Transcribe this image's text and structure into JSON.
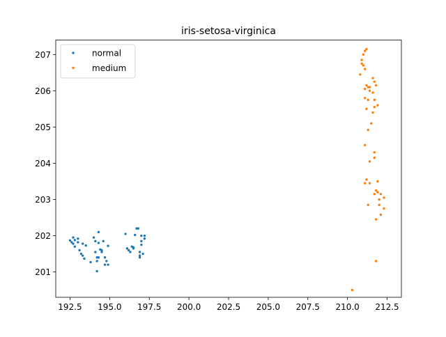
{
  "chart_data": {
    "type": "scatter",
    "title": "iris-setosa-virginica",
    "xlabel": "",
    "ylabel": "",
    "xlim": [
      191.6,
      213.4
    ],
    "ylim": [
      200.3,
      207.4
    ],
    "xticks": [
      192.5,
      195.0,
      197.5,
      200.0,
      202.5,
      205.0,
      207.5,
      210.0,
      212.5
    ],
    "xtick_labels": [
      "192.5",
      "195.0",
      "197.5",
      "200.0",
      "202.5",
      "205.0",
      "207.5",
      "210.0",
      "212.5"
    ],
    "yticks": [
      201,
      202,
      203,
      204,
      205,
      206,
      207
    ],
    "ytick_labels": [
      "201",
      "202",
      "203",
      "204",
      "205",
      "206",
      "207"
    ],
    "grid": false,
    "legend_position": "top-left",
    "series": [
      {
        "name": "normal",
        "color": "#1f77b4",
        "points": [
          [
            192.5,
            201.87
          ],
          [
            192.6,
            201.82
          ],
          [
            192.7,
            201.95
          ],
          [
            192.7,
            201.78
          ],
          [
            192.8,
            201.88
          ],
          [
            192.8,
            201.7
          ],
          [
            193.0,
            201.92
          ],
          [
            193.0,
            201.82
          ],
          [
            193.1,
            201.6
          ],
          [
            193.2,
            201.5
          ],
          [
            193.3,
            201.45
          ],
          [
            193.3,
            201.78
          ],
          [
            193.4,
            201.37
          ],
          [
            193.5,
            201.73
          ],
          [
            193.8,
            201.27
          ],
          [
            194.0,
            201.95
          ],
          [
            194.1,
            201.85
          ],
          [
            194.1,
            201.55
          ],
          [
            194.2,
            201.4
          ],
          [
            194.2,
            201.3
          ],
          [
            194.2,
            201.02
          ],
          [
            194.3,
            202.1
          ],
          [
            194.3,
            201.8
          ],
          [
            194.3,
            201.4
          ],
          [
            194.4,
            201.62
          ],
          [
            194.5,
            201.6
          ],
          [
            194.5,
            201.55
          ],
          [
            194.6,
            201.85
          ],
          [
            194.7,
            201.4
          ],
          [
            194.7,
            201.2
          ],
          [
            194.8,
            201.3
          ],
          [
            194.9,
            201.72
          ],
          [
            194.9,
            201.2
          ],
          [
            196.0,
            202.05
          ],
          [
            196.1,
            201.65
          ],
          [
            196.2,
            201.6
          ],
          [
            196.3,
            201.55
          ],
          [
            196.4,
            201.7
          ],
          [
            196.5,
            201.65
          ],
          [
            196.5,
            201.68
          ],
          [
            196.6,
            202.02
          ],
          [
            196.7,
            202.2
          ],
          [
            196.8,
            202.2
          ],
          [
            196.9,
            201.45
          ],
          [
            196.9,
            201.55
          ],
          [
            196.9,
            201.4
          ],
          [
            197.0,
            201.85
          ],
          [
            197.0,
            202.0
          ],
          [
            197.0,
            201.75
          ],
          [
            197.1,
            201.5
          ],
          [
            197.2,
            202.0
          ],
          [
            197.2,
            201.92
          ]
        ]
      },
      {
        "name": "medium",
        "color": "#ff7f0e",
        "points": [
          [
            210.3,
            200.5
          ],
          [
            210.8,
            206.45
          ],
          [
            210.9,
            206.75
          ],
          [
            210.9,
            206.85
          ],
          [
            211.0,
            207.0
          ],
          [
            211.0,
            206.7
          ],
          [
            211.1,
            207.1
          ],
          [
            211.1,
            206.6
          ],
          [
            211.1,
            206.05
          ],
          [
            211.1,
            205.8
          ],
          [
            211.1,
            204.5
          ],
          [
            211.1,
            203.45
          ],
          [
            211.2,
            207.15
          ],
          [
            211.2,
            206.15
          ],
          [
            211.2,
            205.5
          ],
          [
            211.2,
            203.55
          ],
          [
            211.3,
            206.1
          ],
          [
            211.3,
            205.75
          ],
          [
            211.3,
            204.92
          ],
          [
            211.3,
            202.85
          ],
          [
            211.4,
            206.1
          ],
          [
            211.4,
            206.0
          ],
          [
            211.4,
            204.05
          ],
          [
            211.4,
            203.45
          ],
          [
            211.5,
            205.1
          ],
          [
            211.6,
            206.35
          ],
          [
            211.6,
            205.95
          ],
          [
            211.6,
            205.4
          ],
          [
            211.7,
            206.25
          ],
          [
            211.7,
            205.75
          ],
          [
            211.7,
            205.55
          ],
          [
            211.7,
            204.3
          ],
          [
            211.7,
            204.15
          ],
          [
            211.7,
            203.15
          ],
          [
            211.8,
            206.15
          ],
          [
            211.8,
            203.25
          ],
          [
            211.8,
            201.3
          ],
          [
            211.8,
            202.45
          ],
          [
            211.9,
            205.6
          ],
          [
            211.9,
            203.2
          ],
          [
            211.9,
            203.5
          ],
          [
            212.0,
            203.0
          ],
          [
            212.0,
            202.85
          ],
          [
            212.1,
            203.15
          ],
          [
            212.1,
            202.58
          ],
          [
            212.3,
            203.05
          ],
          [
            212.3,
            202.75
          ]
        ]
      }
    ]
  }
}
